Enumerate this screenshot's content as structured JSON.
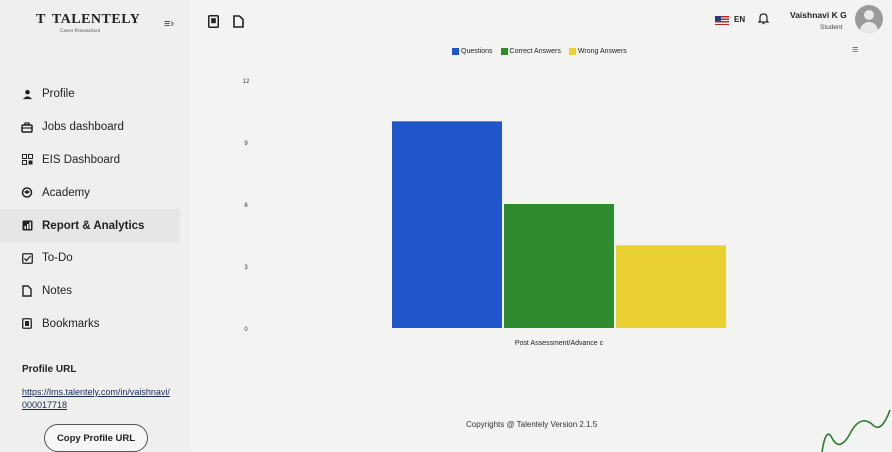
{
  "brand": {
    "letter": "T",
    "name": "TALENTELY",
    "tagline": "Career Personalized"
  },
  "sidebar": {
    "items": [
      {
        "label": "Profile",
        "icon": "user-icon"
      },
      {
        "label": "Jobs dashboard",
        "icon": "briefcase-icon"
      },
      {
        "label": "EIS Dashboard",
        "icon": "grid-icon"
      },
      {
        "label": "Academy",
        "icon": "academy-icon"
      },
      {
        "label": "Report & Analytics",
        "icon": "report-icon",
        "active": true
      },
      {
        "label": "To-Do",
        "icon": "checkbox-icon"
      },
      {
        "label": "Notes",
        "icon": "note-icon"
      },
      {
        "label": "Bookmarks",
        "icon": "bookmark-icon"
      }
    ],
    "profile_url_label": "Profile URL",
    "profile_url": "https://lms.talentely.com/in/vaishnavi/000017718",
    "copy_button": "Copy Profile URL"
  },
  "header": {
    "language": "EN",
    "user_name": "Vaishnavi K G",
    "user_role": "Student"
  },
  "chart_data": {
    "type": "bar",
    "categories": [
      "Post Assessment/Advance c"
    ],
    "series": [
      {
        "name": "Questions",
        "values": [
          10
        ],
        "color": "#1f56c9"
      },
      {
        "name": "Correct Answers",
        "values": [
          6
        ],
        "color": "#2e8b2e"
      },
      {
        "name": "Wrong Answers",
        "values": [
          4
        ],
        "color": "#e8d130"
      }
    ],
    "yticks": [
      "0",
      "3",
      "6",
      "9",
      "12"
    ],
    "ylim": [
      0,
      12
    ],
    "legend": "top"
  },
  "footer": {
    "text": "Copyrights @ Talentely  Version  2.1.5"
  }
}
